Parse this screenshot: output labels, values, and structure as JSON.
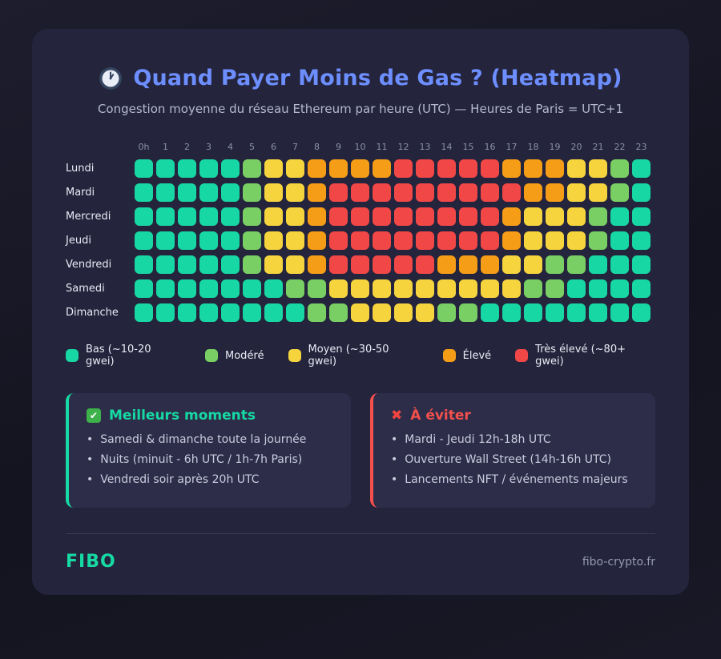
{
  "header": {
    "title": "Quand Payer Moins de Gas ? (Heatmap)",
    "subtitle": "Congestion moyenne du réseau Ethereum par heure (UTC) — Heures de Paris = UTC+1"
  },
  "icons": {
    "clock_icon": "clock-face-1-oclock",
    "check_glyph": "✔",
    "cross_glyph": "✖"
  },
  "colors": {
    "title_accent": "#6d8eff",
    "best_accent": "#16d9a3",
    "avoid_accent": "#f4504d",
    "brand_accent": "#16d9a3"
  },
  "chart_data": {
    "type": "heatmap",
    "title": "Quand Payer Moins de Gas ? (Heatmap)",
    "subtitle": "Congestion moyenne du réseau Ethereum par heure (UTC) — Heures de Paris = UTC+1",
    "x_labels": [
      "0h",
      "1",
      "2",
      "3",
      "4",
      "5",
      "6",
      "7",
      "8",
      "9",
      "10",
      "11",
      "12",
      "13",
      "14",
      "15",
      "16",
      "17",
      "18",
      "19",
      "20",
      "21",
      "22",
      "23"
    ],
    "y_labels": [
      "Lundi",
      "Mardi",
      "Mercredi",
      "Jeudi",
      "Vendredi",
      "Samedi",
      "Dimanche"
    ],
    "value_scale": "0=Bas, 1=Modéré, 2=Moyen, 3=Élevé, 4=Très élevé",
    "legend": [
      {
        "key": "bas",
        "label": "Bas (~10-20 gwei)",
        "color": "#17d7a4"
      },
      {
        "key": "modere",
        "label": "Modéré",
        "color": "#79cf63"
      },
      {
        "key": "moyen",
        "label": "Moyen (~30-50 gwei)",
        "color": "#f6d43e"
      },
      {
        "key": "eleve",
        "label": "Élevé",
        "color": "#f59d16"
      },
      {
        "key": "tres-eleve",
        "label": "Très élevé (~80+ gwei)",
        "color": "#f24747"
      }
    ],
    "values": [
      [
        0,
        0,
        0,
        0,
        0,
        1,
        2,
        2,
        3,
        3,
        3,
        3,
        4,
        4,
        4,
        4,
        4,
        3,
        3,
        3,
        2,
        2,
        1,
        0
      ],
      [
        0,
        0,
        0,
        0,
        0,
        1,
        2,
        2,
        3,
        4,
        4,
        4,
        4,
        4,
        4,
        4,
        4,
        4,
        3,
        3,
        2,
        2,
        1,
        0
      ],
      [
        0,
        0,
        0,
        0,
        0,
        1,
        2,
        2,
        3,
        4,
        4,
        4,
        4,
        4,
        4,
        4,
        4,
        3,
        2,
        2,
        2,
        1,
        0,
        0
      ],
      [
        0,
        0,
        0,
        0,
        0,
        1,
        2,
        2,
        3,
        4,
        4,
        4,
        4,
        4,
        4,
        4,
        4,
        3,
        2,
        2,
        2,
        1,
        0,
        0
      ],
      [
        0,
        0,
        0,
        0,
        0,
        1,
        2,
        2,
        3,
        4,
        4,
        4,
        4,
        4,
        3,
        3,
        3,
        2,
        2,
        1,
        1,
        0,
        0,
        0
      ],
      [
        0,
        0,
        0,
        0,
        0,
        0,
        0,
        1,
        1,
        2,
        2,
        2,
        2,
        2,
        2,
        2,
        2,
        2,
        1,
        1,
        0,
        0,
        0,
        0
      ],
      [
        0,
        0,
        0,
        0,
        0,
        0,
        0,
        0,
        1,
        1,
        2,
        2,
        2,
        2,
        1,
        1,
        0,
        0,
        0,
        0,
        0,
        0,
        0,
        0
      ]
    ]
  },
  "panels": {
    "best": {
      "title": "Meilleurs moments",
      "items": [
        "Samedi & dimanche toute la journée",
        "Nuits (minuit - 6h UTC / 1h-7h Paris)",
        "Vendredi soir après 20h UTC"
      ]
    },
    "avoid": {
      "title": "À éviter",
      "items": [
        "Mardi - Jeudi 12h-18h UTC",
        "Ouverture Wall Street (14h-16h UTC)",
        "Lancements NFT / événements majeurs"
      ]
    }
  },
  "footer": {
    "brand": "FIBO",
    "site": "fibo-crypto.fr"
  }
}
